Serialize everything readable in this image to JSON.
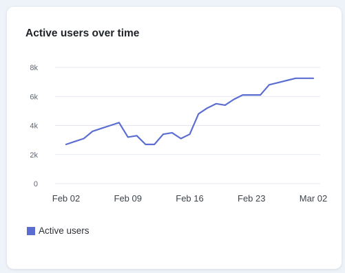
{
  "colors": {
    "series": "#5b6dd1",
    "grid": "#e3e7ed",
    "tick_text": "#5f6670",
    "card_bg": "#ffffff",
    "page_bg": "#eef3f9"
  },
  "chart_data": {
    "type": "line",
    "title": "Active users over time",
    "xlabel": "",
    "ylabel": "",
    "ylim": [
      0,
      8000
    ],
    "y_ticks": [
      0,
      2000,
      4000,
      6000,
      8000
    ],
    "y_tick_labels": [
      "0",
      "2k",
      "4k",
      "6k",
      "8k"
    ],
    "x_ticks": [
      "Feb 02",
      "Feb 09",
      "Feb 16",
      "Feb 23",
      "Mar 02"
    ],
    "x": [
      "Feb 02",
      "Feb 03",
      "Feb 04",
      "Feb 05",
      "Feb 06",
      "Feb 07",
      "Feb 08",
      "Feb 09",
      "Feb 10",
      "Feb 11",
      "Feb 12",
      "Feb 13",
      "Feb 14",
      "Feb 15",
      "Feb 16",
      "Feb 17",
      "Feb 18",
      "Feb 19",
      "Feb 20",
      "Feb 21",
      "Feb 22",
      "Feb 23",
      "Feb 24",
      "Feb 25",
      "Feb 26",
      "Feb 27",
      "Feb 28",
      "Mar 01",
      "Mar 02"
    ],
    "grid": true,
    "legend_position": "bottom-left",
    "series": [
      {
        "name": "Active users",
        "values": [
          2700,
          2900,
          3100,
          3600,
          3800,
          4000,
          4200,
          3200,
          3300,
          2700,
          2700,
          3400,
          3500,
          3100,
          3400,
          4800,
          5200,
          5500,
          5400,
          5800,
          6100,
          6100,
          6100,
          6800,
          6950,
          7100,
          7250,
          7250,
          7250
        ]
      }
    ]
  }
}
